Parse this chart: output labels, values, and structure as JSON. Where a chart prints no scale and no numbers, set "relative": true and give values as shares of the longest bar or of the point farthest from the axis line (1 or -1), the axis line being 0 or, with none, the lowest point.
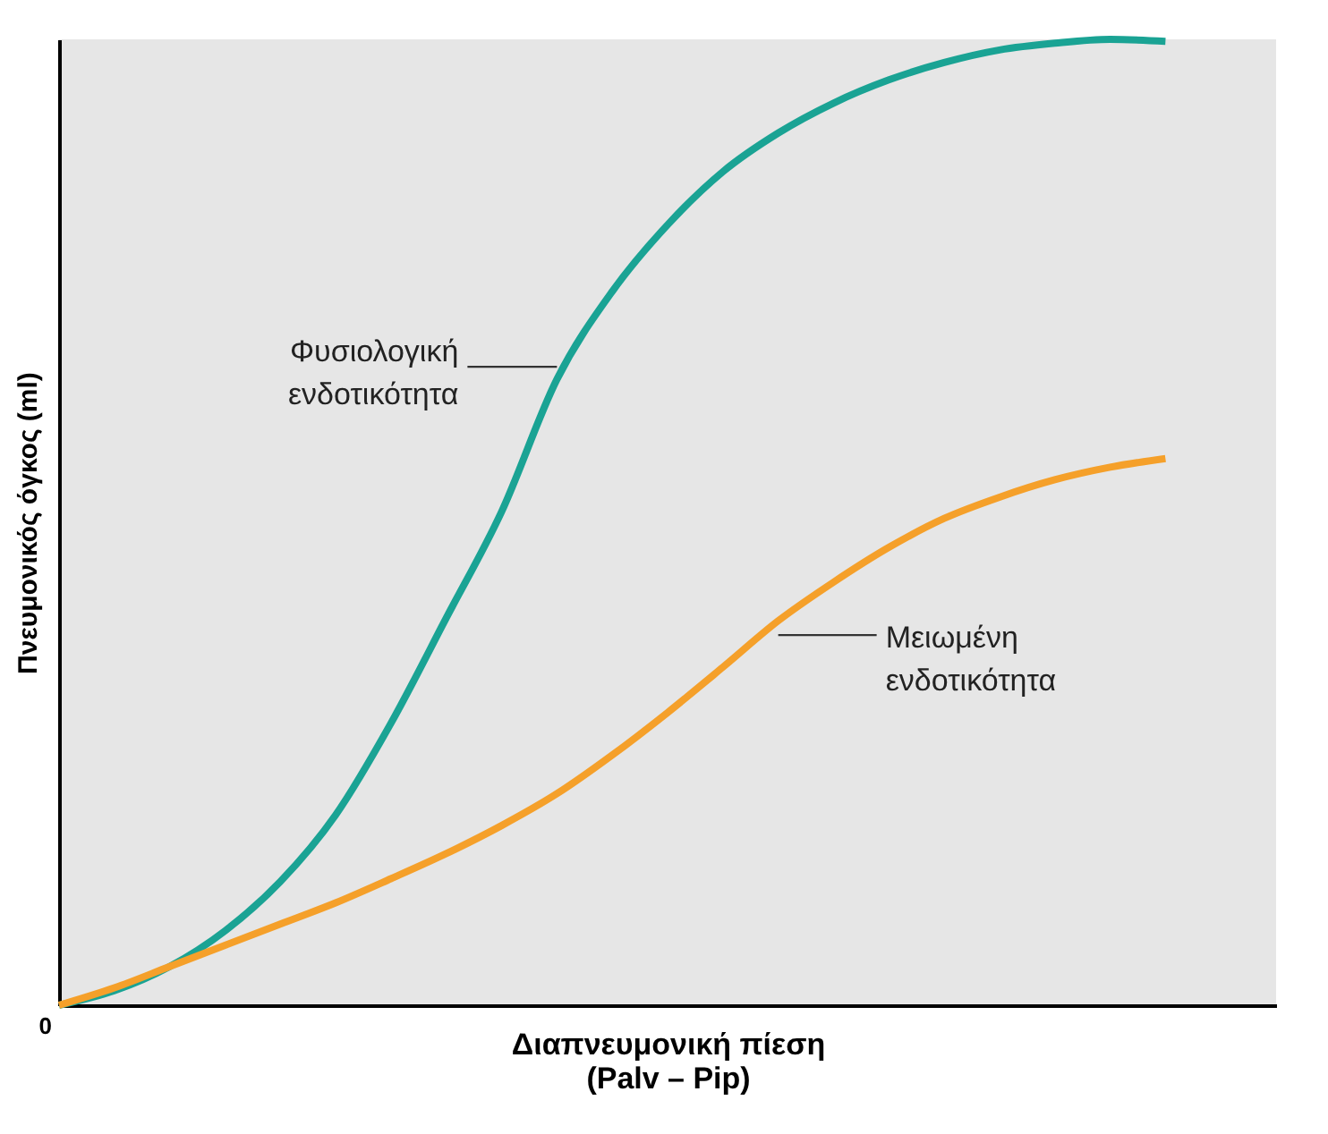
{
  "chart_data": {
    "type": "line",
    "relative": true,
    "xlabel": "Διαπνευμονική πίεση\n(Palv – Pip)",
    "ylabel": "Πνευμονικός όγκος (ml)",
    "categories": [
      null,
      null,
      null,
      null,
      null,
      null,
      null,
      null,
      null,
      null,
      null,
      null,
      null,
      null,
      null,
      null,
      null,
      null,
      null,
      null,
      null,
      null,
      null
    ],
    "series": [
      {
        "name": "Φυσιολογική ενδοτικότητα",
        "color": "#1aa394",
        "values": [
          0,
          0.015,
          0.04,
          0.077,
          0.128,
          0.197,
          0.292,
          0.401,
          0.511,
          0.648,
          0.739,
          0.808,
          0.863,
          0.903,
          0.934,
          0.958,
          0.976,
          0.989,
          0.996,
          1,
          0.998,
          null,
          null
        ]
      },
      {
        "name": "Μειωμένη ενδοτικότητα",
        "color": "#f5a02a",
        "values": [
          0,
          0.018,
          0.04,
          0.062,
          0.084,
          0.106,
          0.131,
          0.157,
          0.186,
          0.219,
          0.259,
          0.303,
          0.35,
          0.398,
          0.438,
          0.474,
          0.504,
          0.526,
          0.544,
          0.557,
          0.566,
          null,
          null
        ]
      }
    ],
    "annotations": [
      "0"
    ],
    "grid": false,
    "marker": "none",
    "line_style": "solid"
  }
}
